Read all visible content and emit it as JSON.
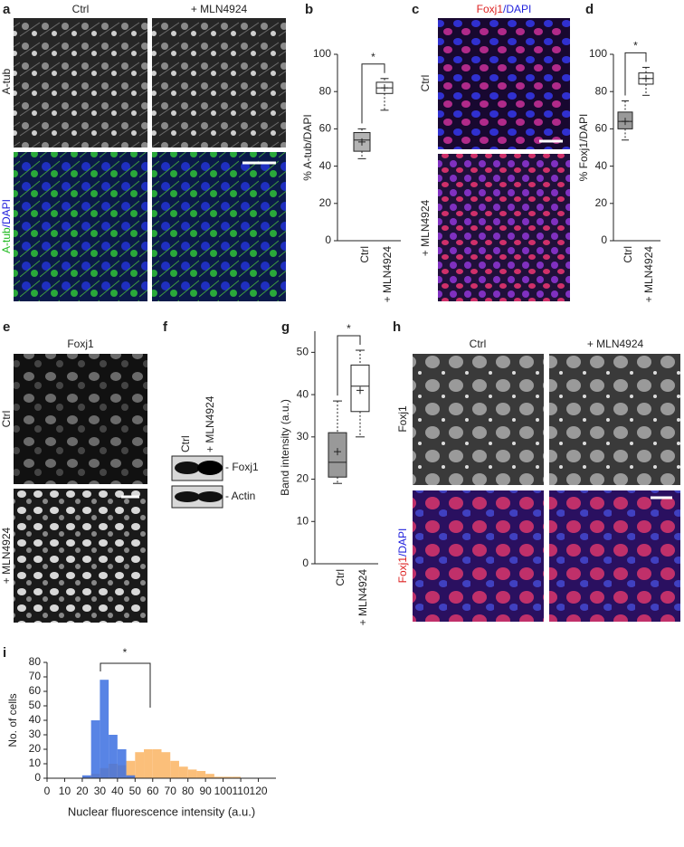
{
  "panels": {
    "a": {
      "label": "a",
      "columns": [
        "Ctrl",
        "+ MLN4924"
      ],
      "row_top": "A-tub",
      "row_bottom": [
        "A-tub",
        "/DAPI"
      ]
    },
    "b": {
      "label": "b"
    },
    "c": {
      "label": "c",
      "header": [
        "Foxj1",
        "/DAPI"
      ],
      "rows": [
        "Ctrl",
        "+ MLN4924"
      ]
    },
    "d": {
      "label": "d"
    },
    "e": {
      "label": "e",
      "header": "Foxj1",
      "rows": [
        "Ctrl",
        "+ MLN4924"
      ]
    },
    "f": {
      "label": "f",
      "columns": [
        "Ctrl",
        "+ MLN4924"
      ],
      "bands": [
        "Foxj1",
        "Actin"
      ]
    },
    "g": {
      "label": "g"
    },
    "h": {
      "label": "h",
      "columns": [
        "Ctrl",
        "+ MLN4924"
      ],
      "row_top": "Foxj1",
      "row_bottom": [
        "Foxj1",
        "/DAPI"
      ]
    },
    "i": {
      "label": "i"
    }
  },
  "chart_data": [
    {
      "type": "box",
      "ylabel": "% A-tub/DAPI",
      "categories": [
        "Ctrl",
        "+ MLN4924"
      ],
      "boxes": [
        {
          "min": 44,
          "q1": 48,
          "median": 54,
          "q3": 58,
          "max": 60,
          "mean": 53,
          "color": "#b3b3b3"
        },
        {
          "min": 70,
          "q1": 79,
          "median": 82,
          "q3": 85,
          "max": 87,
          "mean": 82,
          "color": "#ffffff"
        }
      ],
      "ylim": [
        0,
        100
      ],
      "yticks": [
        0,
        20,
        40,
        60,
        80,
        100
      ],
      "annotation": "*"
    },
    {
      "type": "box",
      "ylabel": "% Foxj1/DAPI",
      "categories": [
        "Ctrl",
        "+ MLN4924"
      ],
      "boxes": [
        {
          "min": 54,
          "q1": 60,
          "median": 64,
          "q3": 69,
          "max": 75,
          "mean": 64,
          "color": "#999999"
        },
        {
          "min": 78,
          "q1": 84,
          "median": 87,
          "q3": 90,
          "max": 93,
          "mean": 87,
          "color": "#ffffff"
        }
      ],
      "ylim": [
        0,
        100
      ],
      "yticks": [
        0,
        20,
        40,
        60,
        80,
        100
      ],
      "annotation": "*"
    },
    {
      "type": "box",
      "ylabel": "Band intensity (a.u.)",
      "categories": [
        "Ctrl",
        "+ MLN4924"
      ],
      "boxes": [
        {
          "min": 19,
          "q1": 20.5,
          "median": 24,
          "q3": 31,
          "max": 38.5,
          "mean": 26.5,
          "color": "#999999"
        },
        {
          "min": 30,
          "q1": 36,
          "median": 42,
          "q3": 47,
          "max": 50.5,
          "mean": 41,
          "color": "#ffffff"
        }
      ],
      "ylim": [
        0,
        55
      ],
      "yticks": [
        0,
        10,
        20,
        30,
        40,
        50
      ],
      "annotation": "*"
    },
    {
      "type": "histogram",
      "xlabel": "Nuclear fluorescence intensity (a.u.)",
      "ylabel": "No. of cells",
      "bins": [
        15,
        20,
        25,
        30,
        35,
        40,
        45,
        50,
        55,
        60,
        65,
        70,
        75,
        80,
        85,
        90,
        95,
        100,
        105,
        110,
        115
      ],
      "series": [
        {
          "color": "#fbbf7a",
          "values": [
            0,
            1,
            3,
            7,
            10,
            9,
            12,
            18,
            20,
            20,
            18,
            12,
            8,
            6,
            5,
            3,
            1,
            1,
            1,
            0
          ]
        },
        {
          "color": "#3b6fe0",
          "values": [
            0,
            2,
            40,
            68,
            30,
            20,
            2,
            0,
            0,
            0,
            0,
            0,
            0,
            0,
            0,
            0,
            0,
            0,
            0,
            0
          ]
        }
      ],
      "xlim": [
        0,
        130
      ],
      "xticks": [
        0,
        10,
        20,
        30,
        40,
        50,
        60,
        70,
        80,
        90,
        100,
        110,
        120
      ],
      "ylim": [
        0,
        80
      ],
      "yticks": [
        0,
        10,
        20,
        30,
        40,
        50,
        60,
        70,
        80
      ],
      "annotation": "*"
    }
  ]
}
